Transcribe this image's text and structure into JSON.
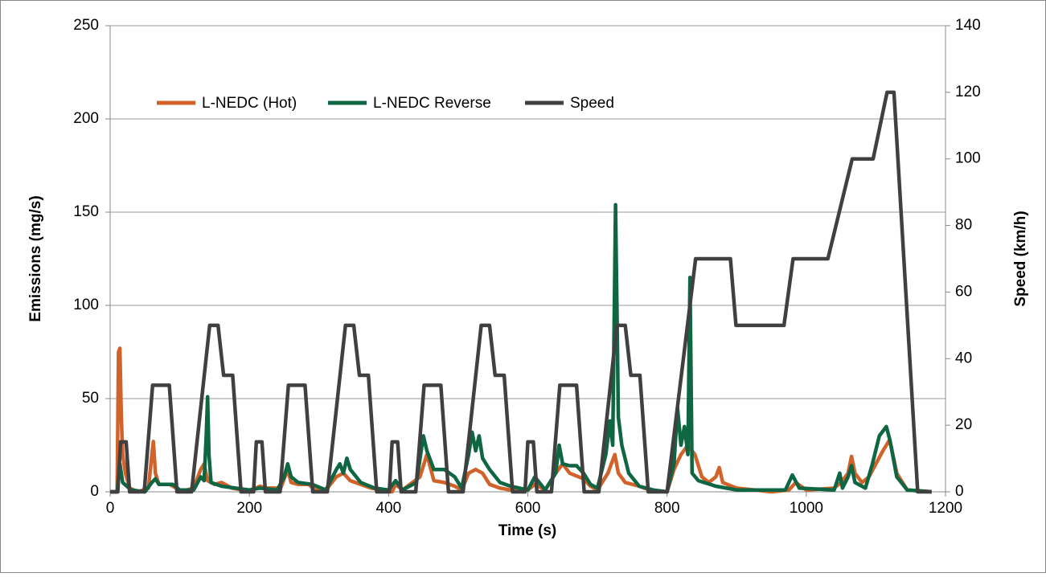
{
  "chart_data": {
    "type": "line",
    "x_label": "Time (s)",
    "y_label": "Emissions (mg/s)",
    "y2_label": "Speed (km/h)",
    "xlim": [
      0,
      1200
    ],
    "xticks": [
      0,
      200,
      400,
      600,
      800,
      1000,
      1200
    ],
    "ylim": [
      0,
      250
    ],
    "yticks": [
      0,
      50,
      100,
      150,
      200,
      250
    ],
    "y2lim": [
      0,
      140
    ],
    "y2ticks": [
      0,
      20,
      40,
      60,
      80,
      100,
      120,
      140
    ],
    "grid": true,
    "legend": "top-left",
    "series": [
      {
        "name": "L-NEDC (Hot)",
        "color": "#d0622a",
        "x": [
          0,
          10,
          12,
          14,
          16,
          18,
          22,
          28,
          40,
          55,
          60,
          62,
          65,
          70,
          85,
          95,
          100,
          120,
          130,
          135,
          140,
          150,
          160,
          175,
          190,
          200,
          215,
          225,
          245,
          255,
          260,
          270,
          285,
          295,
          310,
          325,
          335,
          345,
          360,
          375,
          390,
          405,
          410,
          420,
          445,
          455,
          465,
          480,
          495,
          505,
          515,
          525,
          535,
          545,
          560,
          575,
          600,
          610,
          625,
          640,
          650,
          660,
          680,
          690,
          700,
          715,
          725,
          730,
          740,
          760,
          775,
          800,
          810,
          820,
          830,
          840,
          850,
          860,
          870,
          875,
          880,
          900,
          950,
          975,
          985,
          1000,
          1040,
          1050,
          1060,
          1065,
          1070,
          1080,
          1090,
          1100,
          1110,
          1120,
          1130,
          1145,
          1180
        ],
        "values": [
          0,
          0,
          75,
          77,
          40,
          20,
          10,
          2,
          0,
          2,
          20,
          27,
          10,
          4,
          4,
          2,
          0,
          2,
          12,
          15,
          6,
          4,
          5,
          2,
          1,
          0,
          3,
          2,
          2,
          12,
          5,
          4,
          4,
          1,
          1,
          8,
          10,
          6,
          4,
          2,
          1,
          0,
          4,
          1,
          8,
          20,
          6,
          5,
          3,
          1,
          10,
          12,
          10,
          4,
          2,
          1,
          1,
          4,
          1,
          10,
          15,
          10,
          7,
          3,
          1,
          10,
          20,
          10,
          5,
          3,
          1,
          0,
          12,
          20,
          25,
          20,
          8,
          5,
          8,
          13,
          5,
          2,
          0,
          1,
          5,
          1,
          2,
          5,
          10,
          19,
          10,
          5,
          8,
          15,
          22,
          28,
          10,
          1,
          0
        ]
      },
      {
        "name": "L-NEDC Reverse",
        "color": "#0e6642",
        "x": [
          0,
          10,
          14,
          18,
          30,
          50,
          60,
          65,
          70,
          90,
          100,
          120,
          130,
          135,
          138,
          140,
          142,
          145,
          160,
          180,
          200,
          215,
          240,
          250,
          255,
          260,
          270,
          290,
          310,
          325,
          330,
          335,
          340,
          345,
          360,
          380,
          400,
          410,
          420,
          440,
          450,
          455,
          465,
          480,
          495,
          505,
          515,
          520,
          525,
          530,
          535,
          545,
          560,
          575,
          600,
          610,
          625,
          640,
          645,
          650,
          660,
          670,
          680,
          690,
          700,
          712,
          718,
          722,
          726,
          728,
          730,
          735,
          745,
          760,
          780,
          800,
          810,
          815,
          820,
          825,
          830,
          833,
          836,
          845,
          870,
          900,
          970,
          980,
          990,
          1040,
          1048,
          1052,
          1060,
          1065,
          1070,
          1085,
          1095,
          1105,
          1115,
          1120,
          1130,
          1145,
          1180
        ],
        "values": [
          0,
          0,
          15,
          5,
          1,
          0,
          5,
          7,
          4,
          4,
          1,
          1,
          8,
          6,
          30,
          51,
          20,
          5,
          3,
          2,
          1,
          2,
          1,
          8,
          15,
          8,
          5,
          4,
          1,
          12,
          15,
          10,
          18,
          12,
          5,
          2,
          1,
          6,
          1,
          5,
          30,
          22,
          12,
          12,
          8,
          2,
          20,
          32,
          22,
          30,
          18,
          12,
          5,
          3,
          1,
          8,
          1,
          10,
          25,
          15,
          14,
          14,
          10,
          4,
          2,
          20,
          38,
          25,
          154,
          100,
          40,
          25,
          10,
          3,
          1,
          0,
          15,
          45,
          25,
          35,
          20,
          115,
          10,
          6,
          3,
          1,
          1,
          9,
          2,
          1,
          10,
          2,
          8,
          14,
          5,
          2,
          15,
          30,
          35,
          28,
          8,
          1,
          0
        ]
      },
      {
        "name": "Speed",
        "color": "#404040",
        "axis": "y2",
        "x": [
          0,
          11,
          15,
          23,
          28,
          49,
          61,
          85,
          96,
          117,
          143,
          155,
          163,
          176,
          188,
          206,
          210,
          218,
          223,
          244,
          256,
          280,
          291,
          312,
          338,
          350,
          358,
          371,
          383,
          401,
          405,
          413,
          418,
          439,
          451,
          475,
          486,
          507,
          533,
          545,
          553,
          566,
          578,
          596,
          600,
          608,
          613,
          634,
          646,
          670,
          681,
          702,
          728,
          740,
          748,
          761,
          773,
          800,
          841,
          891,
          899,
          968,
          981,
          1031,
          1066,
          1096,
          1116,
          1126,
          1160,
          1180
        ],
        "values": [
          0,
          0,
          15,
          15,
          0,
          0,
          32,
          32,
          0,
          0,
          50,
          50,
          35,
          35,
          0,
          0,
          15,
          15,
          0,
          0,
          32,
          32,
          0,
          0,
          50,
          50,
          35,
          35,
          0,
          0,
          15,
          15,
          0,
          0,
          32,
          32,
          0,
          0,
          50,
          50,
          35,
          35,
          0,
          0,
          15,
          15,
          0,
          0,
          32,
          32,
          0,
          0,
          50,
          50,
          35,
          35,
          0,
          0,
          70,
          70,
          50,
          50,
          70,
          70,
          100,
          100,
          120,
          120,
          0,
          0
        ]
      }
    ]
  }
}
